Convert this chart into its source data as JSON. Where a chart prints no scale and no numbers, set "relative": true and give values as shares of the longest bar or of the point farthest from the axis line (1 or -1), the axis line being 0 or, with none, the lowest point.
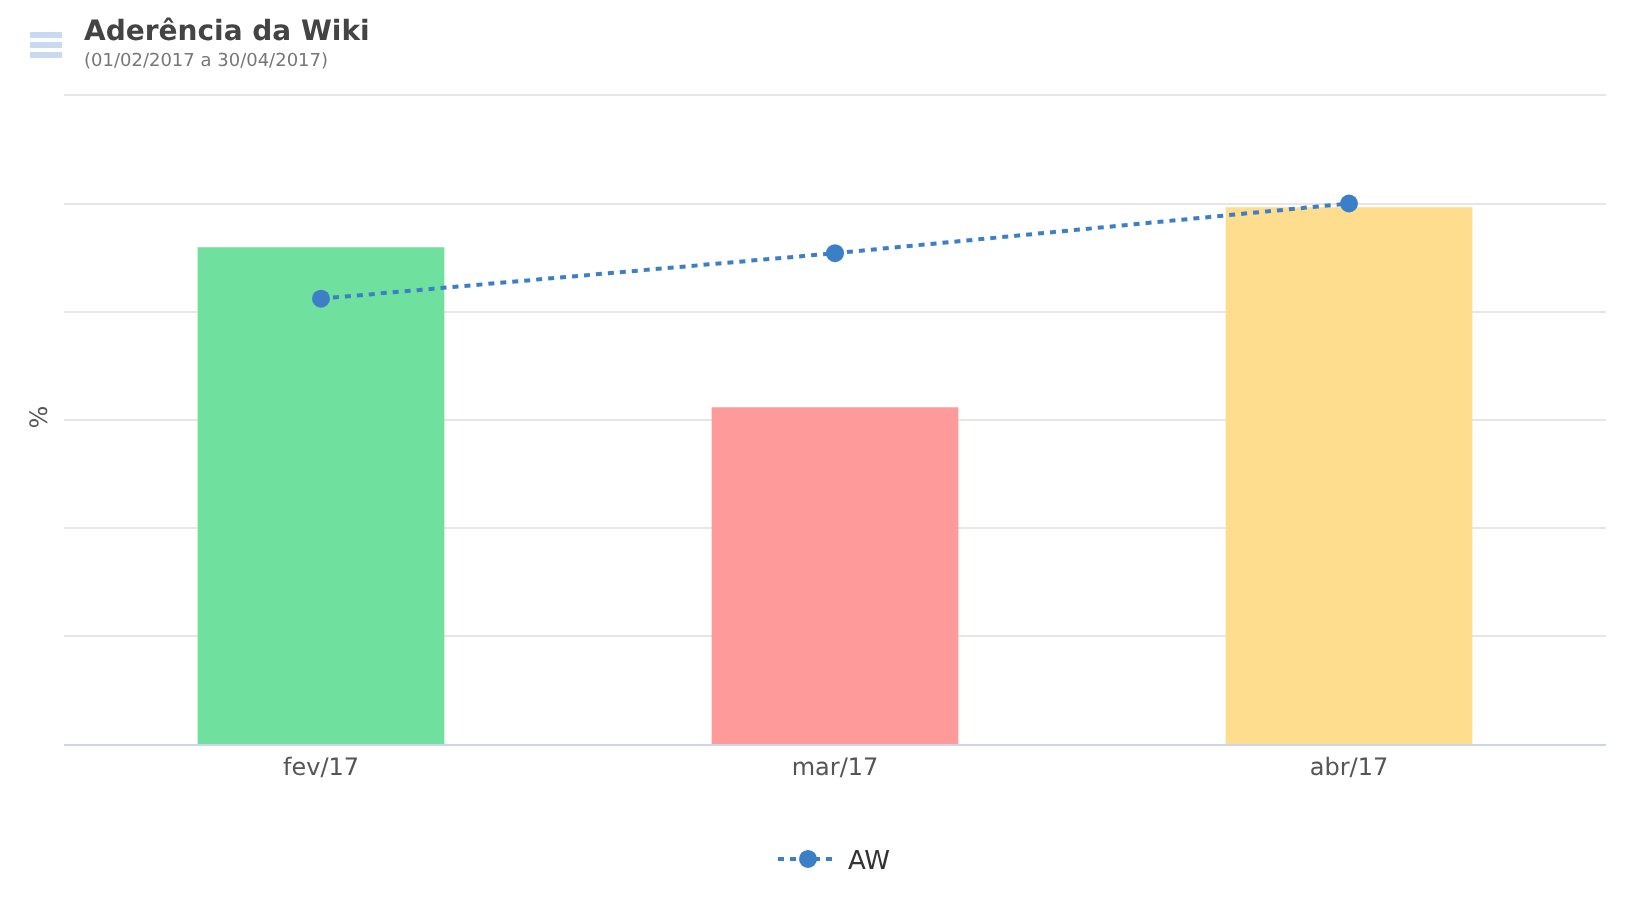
{
  "chart_data": {
    "type": "bar",
    "title": "Aderência da Wiki",
    "subtitle": "(01/02/2017 a 30/04/2017)",
    "ylabel": "%",
    "relative": true,
    "categories": [
      "fev/17",
      "mar/17",
      "abr/17"
    ],
    "series": [
      {
        "colors": [
          "#70e09e",
          "#ff9a9a",
          "#fedd8f"
        ],
        "values": [
          0.919,
          0.623,
          0.993
        ]
      },
      {
        "type": "line",
        "name": "AW",
        "color": "#3d7fc6",
        "values": [
          0.824,
          0.908,
          1
        ],
        "marker": "circle",
        "line_style": "dotted"
      }
    ],
    "grid": "y",
    "legend": "bottom"
  }
}
